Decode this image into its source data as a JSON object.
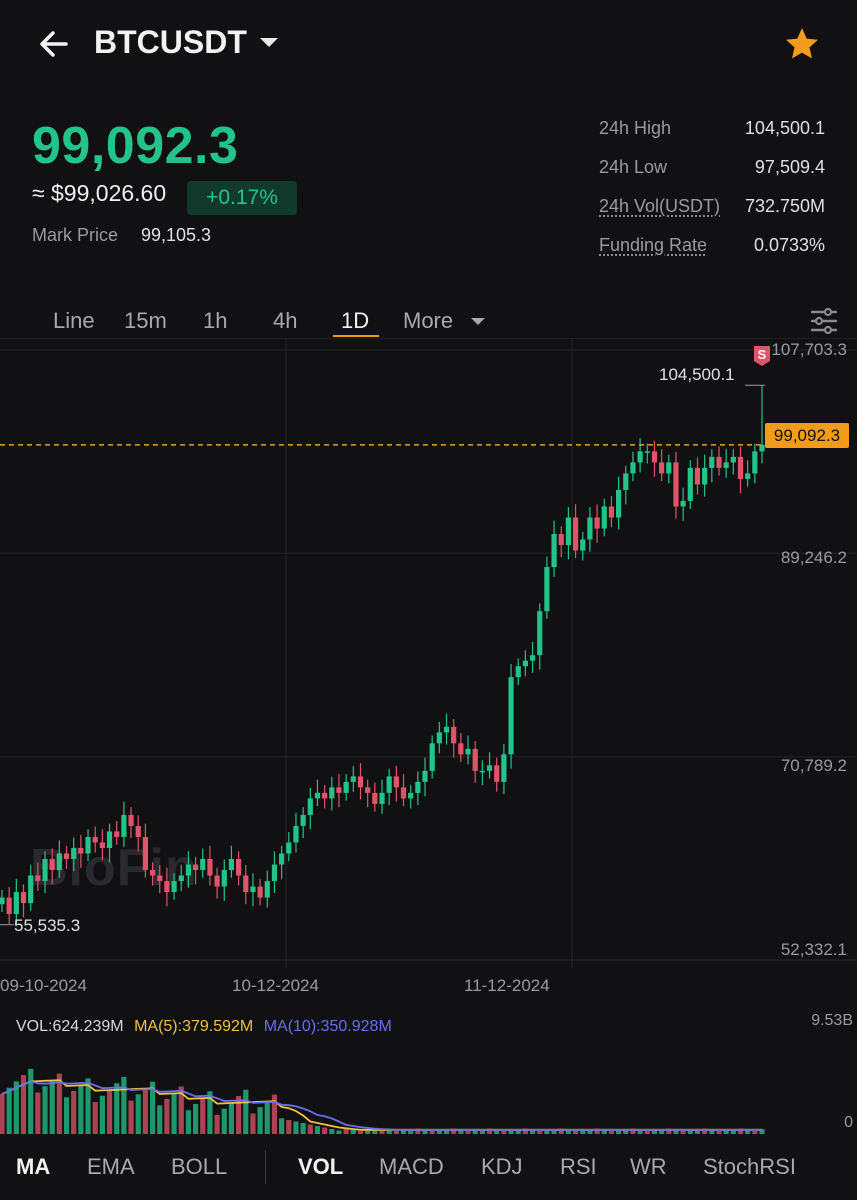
{
  "header": {
    "symbol": "BTCUSDT",
    "back_icon": "arrow-left-icon",
    "favorite_icon": "star-icon",
    "favorite_color": "#f39b1a"
  },
  "price": {
    "last": "99,092.3",
    "usd_equiv": "≈ $99,026.60",
    "change": "+0.17%",
    "mark_label": "Mark Price",
    "mark_value": "99,105.3",
    "up_color": "#22c48a",
    "down_color": "#e0546a"
  },
  "stats": [
    {
      "label": "24h High",
      "value": "104,500.1"
    },
    {
      "label": "24h Low",
      "value": "97,509.4"
    },
    {
      "label": "24h Vol(USDT)",
      "value": "732.750M"
    },
    {
      "label": "Funding Rate",
      "value": "0.0733%"
    }
  ],
  "intervals": {
    "items": [
      "Line",
      "15m",
      "1h",
      "4h",
      "1D",
      "More"
    ],
    "active": "1D"
  },
  "chart": {
    "y_labels": [
      "107,703.3",
      "89,246.2",
      "70,789.2",
      "52,332.1"
    ],
    "x_labels": [
      "09-10-2024",
      "10-12-2024",
      "11-12-2024"
    ],
    "current_price_tag": "99,092.3",
    "high_label": "104,500.1",
    "low_label": "55,535.3",
    "marker": "S",
    "watermark": "BloFin"
  },
  "chart_data": {
    "type": "candlestick",
    "x_labels": [
      "09-10-2024",
      "10-12-2024",
      "11-12-2024"
    ],
    "ylim": [
      52332.1,
      107703.3
    ],
    "closes": [
      58000,
      56500,
      58500,
      57500,
      60000,
      59500,
      61500,
      60500,
      62000,
      61500,
      62500,
      62000,
      63500,
      63000,
      62500,
      64000,
      63500,
      65500,
      64500,
      63500,
      60500,
      60000,
      59500,
      58500,
      59500,
      60000,
      61000,
      60500,
      61500,
      60000,
      59000,
      60500,
      61500,
      60000,
      58500,
      59000,
      58000,
      59500,
      61000,
      62000,
      63000,
      64500,
      65500,
      67000,
      67500,
      67000,
      68000,
      67500,
      68500,
      69000,
      68000,
      67500,
      66500,
      67500,
      69000,
      68000,
      67000,
      67500,
      68500,
      69500,
      72000,
      73000,
      73500,
      72000,
      71000,
      71500,
      69500,
      69500,
      70000,
      68500,
      71000,
      78000,
      79000,
      79500,
      80000,
      84000,
      88000,
      91000,
      90000,
      92500,
      89500,
      90500,
      92500,
      91500,
      93500,
      92500,
      95000,
      96500,
      97500,
      98500,
      98500,
      97500,
      96500,
      97500,
      93500,
      94000,
      97000,
      95500,
      97000,
      98000,
      97000,
      97500,
      98000,
      96000,
      96500,
      98500,
      99092.3
    ],
    "high": 104500.1,
    "low": 55535.3,
    "current": 99092.3
  },
  "volume": {
    "vol_label": "VOL:624.239M",
    "ma5_label": "MA(5):379.592M",
    "ma10_label": "MA(10):350.928M",
    "max_label": "9.53B",
    "zero_label": "0",
    "vol_color": "#d8d8dc",
    "ma5_color": "#f0c040",
    "ma10_color": "#6a6ef0"
  },
  "indicators": {
    "main": [
      "MA",
      "EMA",
      "BOLL"
    ],
    "sub": [
      "VOL",
      "MACD",
      "KDJ",
      "RSI",
      "WR",
      "StochRSI"
    ],
    "active_main": "MA",
    "active_sub": "VOL"
  }
}
